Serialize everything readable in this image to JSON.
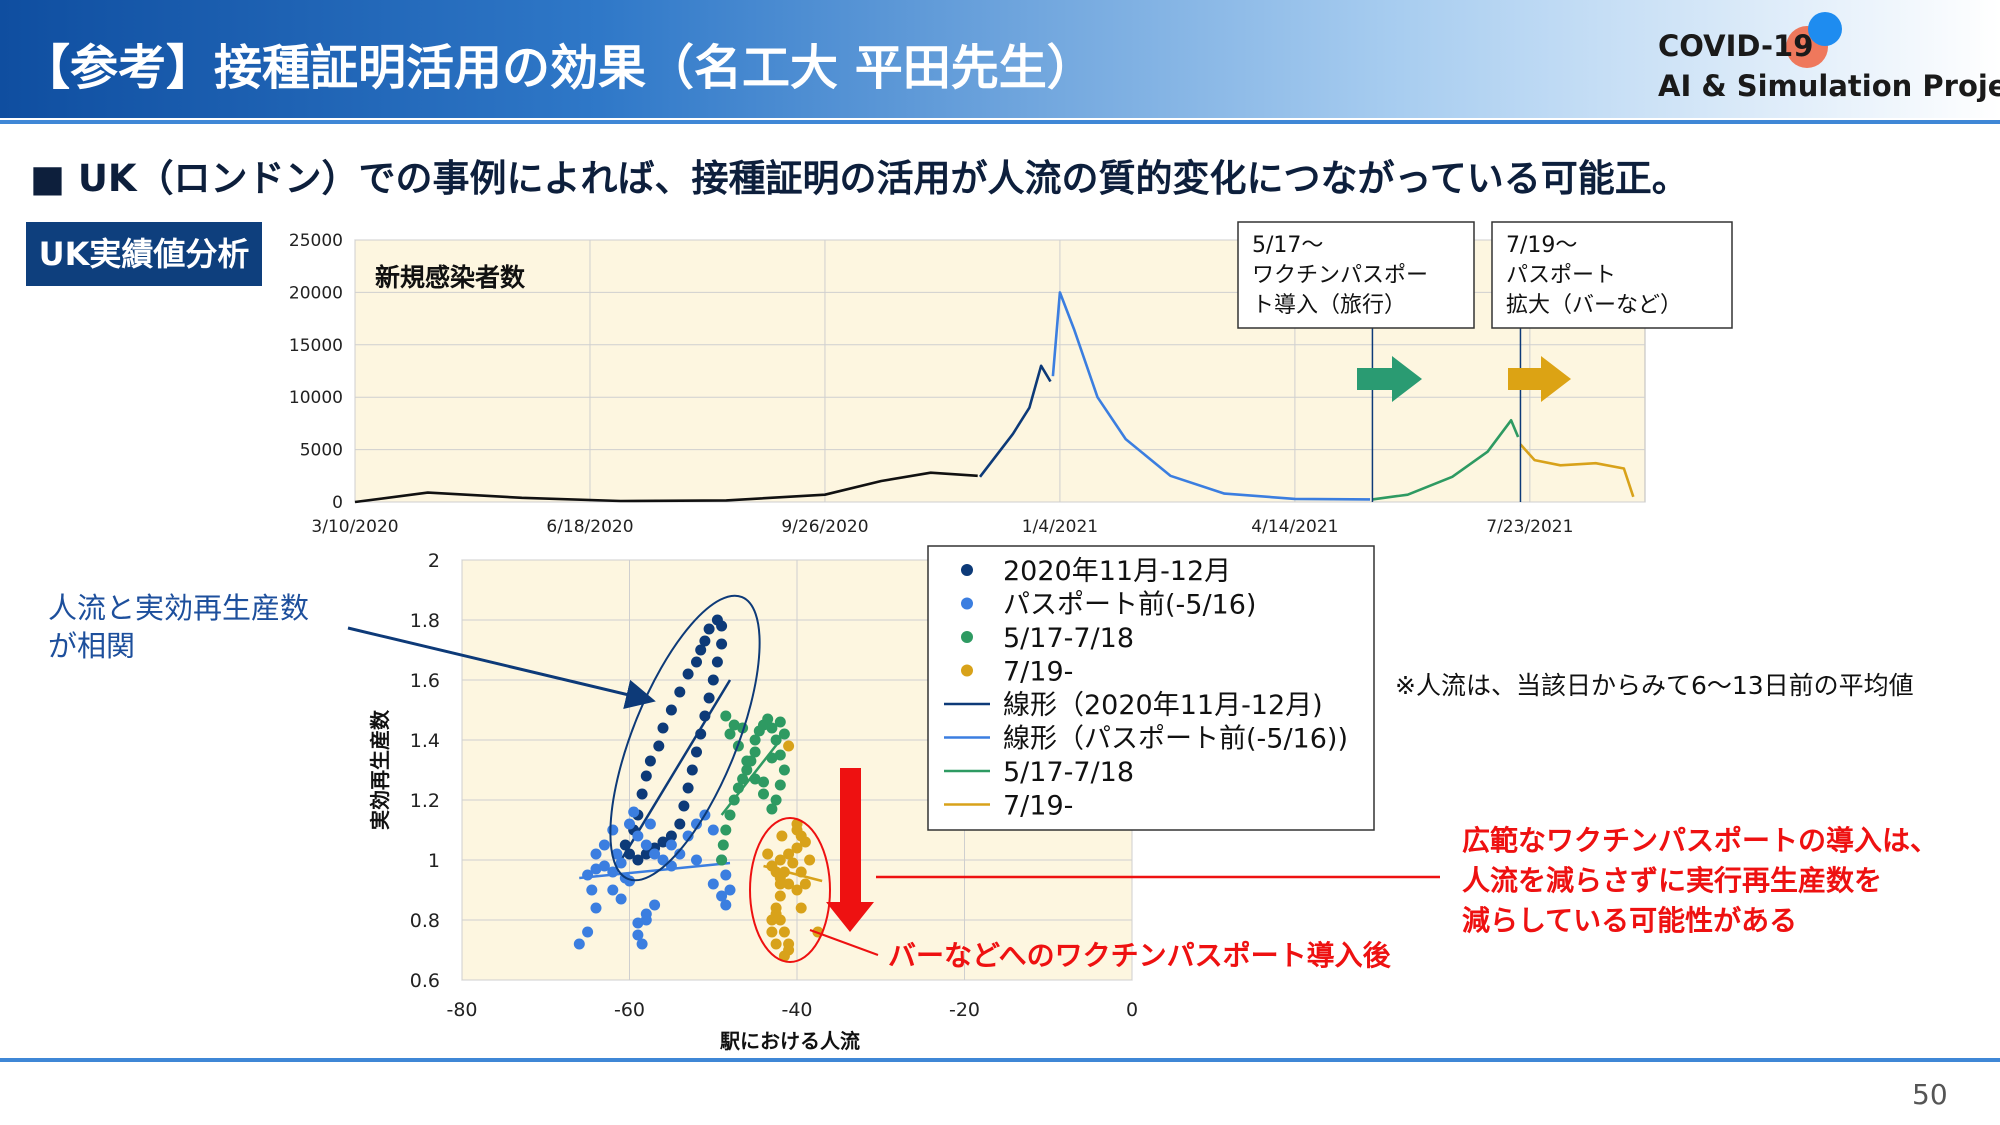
{
  "header": {
    "title": "【参考】接種証明活用の効果（名工大 平田先生）",
    "logo_line1": "COVID-19",
    "logo_line2": "AI & Simulation Project"
  },
  "bullet": "■ UK（ロンドン）での事例によれば、接種証明の活用が人流の質的変化につながっている可能正。",
  "badge": "UK実績値分析",
  "page_number": "50",
  "annotations": {
    "box1_l1": "5/17～",
    "box1_l2": "ワクチンパスポー",
    "box1_l3": "ト導入（旅行）",
    "box2_l1": "7/19～",
    "box2_l2": "パスポート",
    "box2_l3": "拡大（バーなど）",
    "corr_l1": "人流と実効再生産数",
    "corr_l2": "が相関",
    "note": "※人流は、当該日からみて6～13日前の平均値",
    "red_l1": "広範なワクチンパスポートの導入は、",
    "red_l2": "人流を減らさずに実行再生産数を",
    "red_l3": "減らしている可能性がある",
    "after_bar": "バーなどへのワクチンパスポート導入後"
  },
  "colors": {
    "dark_blue": "#0d3a78",
    "light_blue": "#3b7ee0",
    "green": "#2e9a62",
    "gold": "#d8a21a",
    "red": "#ee1111",
    "plot_bg": "#fdf6e0"
  },
  "chart_data": [
    {
      "type": "line",
      "title": "新規感染者数",
      "xlabel": "",
      "ylabel": "",
      "x_ticks": [
        "3/10/2020",
        "6/18/2020",
        "9/26/2020",
        "1/4/2021",
        "4/14/2021",
        "7/23/2021"
      ],
      "y_ticks": [
        "0",
        "5000",
        "10000",
        "15000",
        "20000",
        "25000"
      ],
      "ylim": [
        0,
        25000
      ],
      "grid": true,
      "series": [
        {
          "color": "#111111",
          "x": [
            "2020-03-10",
            "2020-04-10",
            "2020-05-20",
            "2020-07-01",
            "2020-08-15",
            "2020-09-26",
            "2020-10-20",
            "2020-11-10",
            "2020-11-30"
          ],
          "values": [
            0,
            900,
            400,
            100,
            150,
            700,
            2000,
            2800,
            2500
          ]
        },
        {
          "color": "#0d3a78",
          "x": [
            "2020-12-01",
            "2020-12-15",
            "2020-12-22",
            "2020-12-27",
            "2020-12-31"
          ],
          "values": [
            2400,
            6500,
            9000,
            13000,
            11500
          ]
        },
        {
          "color": "#3b7ee0",
          "x": [
            "2021-01-01",
            "2021-01-04",
            "2021-01-10",
            "2021-01-20",
            "2021-02-01",
            "2021-02-20",
            "2021-03-15",
            "2021-04-14",
            "2021-05-16"
          ],
          "values": [
            12000,
            20000,
            16500,
            10000,
            6000,
            2500,
            800,
            300,
            250
          ]
        },
        {
          "color": "#2e9a62",
          "x": [
            "2021-05-17",
            "2021-06-01",
            "2021-06-20",
            "2021-07-05",
            "2021-07-15",
            "2021-07-18"
          ],
          "values": [
            250,
            700,
            2400,
            4800,
            7800,
            6200
          ]
        },
        {
          "color": "#d8a21a",
          "x": [
            "2021-07-19",
            "2021-07-25",
            "2021-08-05",
            "2021-08-20",
            "2021-09-01",
            "2021-09-05"
          ],
          "values": [
            5500,
            4000,
            3500,
            3700,
            3200,
            500
          ]
        }
      ],
      "markers": [
        "2021-05-17",
        "2021-07-19"
      ]
    },
    {
      "type": "scatter",
      "xlabel": "駅における人流",
      "ylabel": "実効再生産数",
      "xlim": [
        -80,
        0
      ],
      "ylim": [
        0.6,
        2
      ],
      "x_ticks": [
        "-80",
        "-60",
        "-40",
        "-20",
        "0"
      ],
      "y_ticks": [
        "0.6",
        "0.8",
        "1",
        "1.2",
        "1.4",
        "1.6",
        "1.8",
        "2"
      ],
      "grid": true,
      "legend": [
        "2020年11月-12月",
        "パスポート前(-5/16)",
        "5/17-7/18",
        "7/19-",
        "線形（2020年11月-12月)",
        "線形（パスポート前(-5/16))",
        "5/17-7/18",
        "7/19-"
      ],
      "series": [
        {
          "name": "2020年11月-12月",
          "color": "#0d3a78",
          "points": [
            [
              -59,
              1.15
            ],
            [
              -58.5,
              1.22
            ],
            [
              -58,
              1.28
            ],
            [
              -57.5,
              1.33
            ],
            [
              -56.5,
              1.38
            ],
            [
              -56,
              1.44
            ],
            [
              -55,
              1.5
            ],
            [
              -54,
              1.56
            ],
            [
              -53,
              1.62
            ],
            [
              -52,
              1.66
            ],
            [
              -51.5,
              1.7
            ],
            [
              -51,
              1.73
            ],
            [
              -50.5,
              1.77
            ],
            [
              -49.5,
              1.8
            ],
            [
              -49,
              1.78
            ],
            [
              -49,
              1.72
            ],
            [
              -49.5,
              1.66
            ],
            [
              -50,
              1.6
            ],
            [
              -50.5,
              1.54
            ],
            [
              -51,
              1.48
            ],
            [
              -51.5,
              1.42
            ],
            [
              -52,
              1.36
            ],
            [
              -52.5,
              1.3
            ],
            [
              -53,
              1.24
            ],
            [
              -53.5,
              1.18
            ],
            [
              -54,
              1.12
            ],
            [
              -55,
              1.08
            ],
            [
              -56,
              1.06
            ],
            [
              -57,
              1.04
            ],
            [
              -58,
              1.02
            ],
            [
              -59,
              1.0
            ],
            [
              -60,
              1.02
            ],
            [
              -60.5,
              1.05
            ],
            [
              -59.5,
              1.1
            ]
          ]
        },
        {
          "name": "パスポート前(-5/16)",
          "color": "#3b7ee0",
          "points": [
            [
              -66,
              0.72
            ],
            [
              -65,
              0.76
            ],
            [
              -64,
              0.84
            ],
            [
              -64.5,
              0.9
            ],
            [
              -65,
              0.95
            ],
            [
              -64,
              0.97
            ],
            [
              -62,
              0.96
            ],
            [
              -61,
              0.99
            ],
            [
              -60,
              0.93
            ],
            [
              -61,
              0.87
            ],
            [
              -62,
              0.9
            ],
            [
              -63,
              1.05
            ],
            [
              -62,
              1.1
            ],
            [
              -60,
              1.12
            ],
            [
              -59,
              1.08
            ],
            [
              -58,
              1.05
            ],
            [
              -57,
              1.02
            ],
            [
              -56,
              1.0
            ],
            [
              -55,
              0.98
            ],
            [
              -54,
              1.02
            ],
            [
              -53,
              1.08
            ],
            [
              -52,
              1.12
            ],
            [
              -51,
              1.15
            ],
            [
              -50,
              1.1
            ],
            [
              -49,
              1.0
            ],
            [
              -48.5,
              0.95
            ],
            [
              -48,
              0.9
            ],
            [
              -48.5,
              0.85
            ],
            [
              -49,
              0.88
            ],
            [
              -50,
              0.92
            ],
            [
              -57,
              0.85
            ],
            [
              -58,
              0.8
            ],
            [
              -59,
              0.75
            ],
            [
              -58.5,
              0.72
            ],
            [
              -59,
              0.79
            ],
            [
              -58,
              0.82
            ],
            [
              -60.5,
              0.94
            ],
            [
              -61.5,
              1.02
            ],
            [
              -63,
              0.98
            ],
            [
              -55,
              1.05
            ],
            [
              -52,
              1.0
            ],
            [
              -57.5,
              1.12
            ],
            [
              -59.5,
              1.16
            ],
            [
              -64,
              1.02
            ]
          ]
        },
        {
          "name": "5/17-7/18",
          "color": "#2e9a62",
          "points": [
            [
              -49,
              1.0
            ],
            [
              -48.8,
              1.05
            ],
            [
              -48.5,
              1.1
            ],
            [
              -48,
              1.15
            ],
            [
              -47.5,
              1.2
            ],
            [
              -47,
              1.24
            ],
            [
              -46.5,
              1.27
            ],
            [
              -46,
              1.3
            ],
            [
              -45.5,
              1.33
            ],
            [
              -45,
              1.36
            ],
            [
              -45,
              1.4
            ],
            [
              -44.5,
              1.43
            ],
            [
              -44,
              1.45
            ],
            [
              -43.5,
              1.47
            ],
            [
              -43,
              1.44
            ],
            [
              -42.5,
              1.4
            ],
            [
              -42,
              1.35
            ],
            [
              -41.5,
              1.3
            ],
            [
              -42,
              1.25
            ],
            [
              -42.5,
              1.2
            ],
            [
              -43,
              1.17
            ],
            [
              -44,
              1.22
            ],
            [
              -45,
              1.27
            ],
            [
              -46,
              1.33
            ],
            [
              -47,
              1.38
            ],
            [
              -48,
              1.42
            ],
            [
              -48.5,
              1.48
            ],
            [
              -47.5,
              1.45
            ],
            [
              -46.5,
              1.44
            ],
            [
              -42,
              1.46
            ],
            [
              -41.5,
              1.42
            ],
            [
              -43,
              1.34
            ],
            [
              -44,
              1.26
            ]
          ]
        },
        {
          "name": "7/19-",
          "color": "#d8a21a",
          "points": [
            [
              -41,
              1.38
            ],
            [
              -40,
              1.1
            ],
            [
              -39.5,
              1.08
            ],
            [
              -39,
              1.06
            ],
            [
              -40,
              1.04
            ],
            [
              -41,
              1.02
            ],
            [
              -42,
              1.0
            ],
            [
              -43,
              0.98
            ],
            [
              -42.5,
              0.96
            ],
            [
              -42,
              0.94
            ],
            [
              -41,
              0.92
            ],
            [
              -40,
              0.9
            ],
            [
              -39,
              0.92
            ],
            [
              -39.5,
              0.96
            ],
            [
              -40.5,
              0.99
            ],
            [
              -41.5,
              0.96
            ],
            [
              -42,
              0.92
            ],
            [
              -42,
              0.88
            ],
            [
              -42.5,
              0.84
            ],
            [
              -42,
              0.8
            ],
            [
              -41.5,
              0.76
            ],
            [
              -41,
              0.72
            ],
            [
              -41,
              0.7
            ],
            [
              -41.5,
              0.68
            ],
            [
              -42.5,
              0.72
            ],
            [
              -43,
              0.76
            ],
            [
              -43,
              0.8
            ],
            [
              -42.5,
              0.82
            ],
            [
              -40,
              1.12
            ],
            [
              -38.5,
              1.0
            ],
            [
              -37.5,
              0.76
            ],
            [
              -39.5,
              0.84
            ],
            [
              -43.5,
              1.02
            ],
            [
              -41.8,
              1.08
            ]
          ]
        }
      ],
      "trendlines": [
        {
          "name": "線形（2020年11月-12月)",
          "color": "#0d3a78",
          "from": [
            -61,
            1.0
          ],
          "to": [
            -48,
            1.6
          ]
        },
        {
          "name": "線形（パスポート前(-5/16))",
          "color": "#3b7ee0",
          "from": [
            -66,
            0.94
          ],
          "to": [
            -48,
            0.99
          ]
        },
        {
          "name": "5/17-7/18",
          "color": "#2e9a62",
          "from": [
            -49,
            1.15
          ],
          "to": [
            -42,
            1.4
          ]
        },
        {
          "name": "7/19-",
          "color": "#d8a21a",
          "from": [
            -44,
            0.98
          ],
          "to": [
            -37,
            0.93
          ]
        }
      ]
    }
  ]
}
